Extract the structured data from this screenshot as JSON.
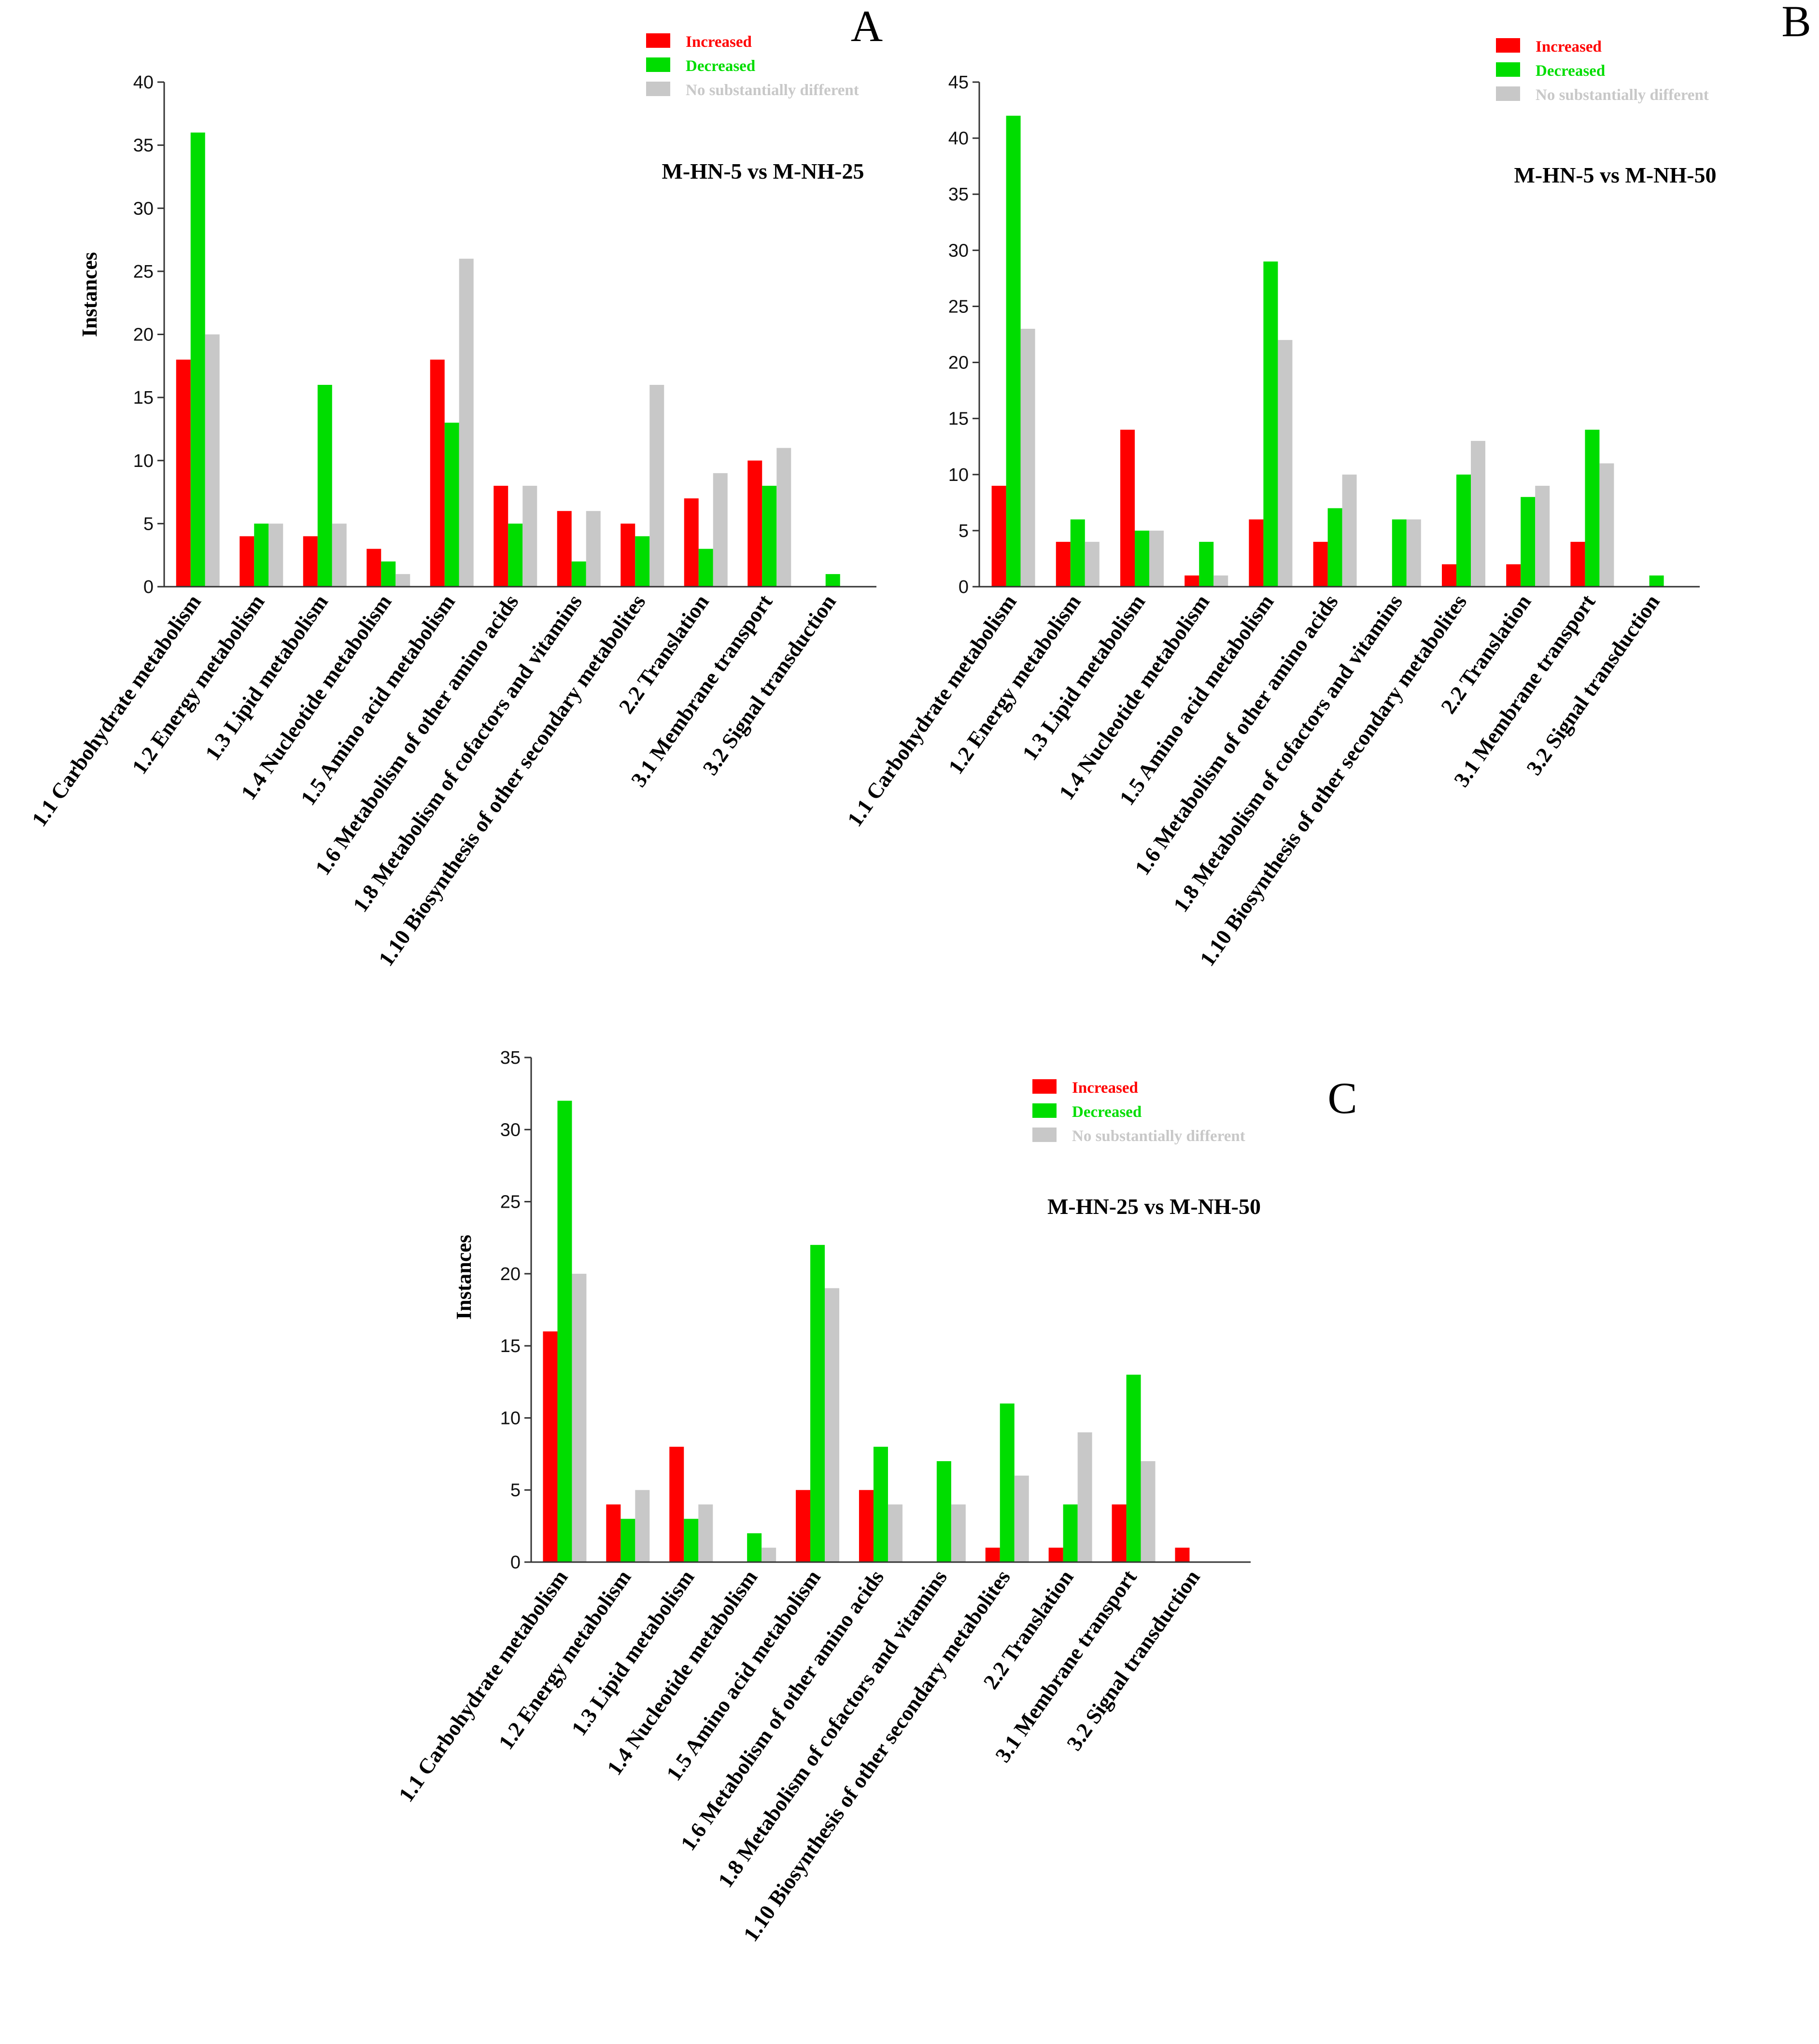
{
  "colors": {
    "increased": "#ff0000",
    "decreased": "#00dd00",
    "nodiff": "#c8c8c8"
  },
  "chart_data": [
    {
      "type": "bar",
      "panel": "A",
      "title": "M-HN-5 vs M-NH-25",
      "xlabel": "",
      "ylabel": "Instances",
      "ylim": [
        0,
        40
      ],
      "yticks": [
        0,
        5,
        10,
        15,
        20,
        25,
        30,
        35,
        40
      ],
      "legend_position": "top-right",
      "categories": [
        "1.1 Carbohydrate metabolism",
        "1.2 Energy metabolism",
        "1.3 Lipid metabolism",
        "1.4 Nucleotide metabolism",
        "1.5 Amino acid metabolism",
        "1.6 Metabolism of other amino acids",
        "1.8 Metabolism of cofactors and vitamins",
        "1.10 Biosynthesis of other secondary metabolites",
        "2.2 Translation",
        "3.1 Membrane transport",
        "3.2 Signal transduction"
      ],
      "series": [
        {
          "name": "Increased",
          "values": [
            18,
            4,
            4,
            3,
            18,
            8,
            6,
            5,
            7,
            10,
            0
          ]
        },
        {
          "name": "Decreased",
          "values": [
            36,
            5,
            16,
            2,
            13,
            5,
            2,
            4,
            3,
            8,
            1
          ]
        },
        {
          "name": "No substantially different",
          "values": [
            20,
            5,
            5,
            1,
            26,
            8,
            6,
            16,
            9,
            11,
            0
          ]
        }
      ]
    },
    {
      "type": "bar",
      "panel": "B",
      "title": "M-HN-5 vs M-NH-50",
      "xlabel": "",
      "ylabel": "",
      "ylim": [
        0,
        45
      ],
      "yticks": [
        0,
        5,
        10,
        15,
        20,
        25,
        30,
        35,
        40,
        45
      ],
      "legend_position": "top-right",
      "categories": [
        "1.1 Carbohydrate metabolism",
        "1.2 Energy metabolism",
        "1.3 Lipid metabolism",
        "1.4 Nucleotide metabolism",
        "1.5 Amino acid metabolism",
        "1.6 Metabolism of other amino acids",
        "1.8 Metabolism of cofactors and vitamins",
        "1.10 Biosynthesis of other secondary metabolites",
        "2.2 Translation",
        "3.1 Membrane transport",
        "3.2 Signal transduction"
      ],
      "series": [
        {
          "name": "Increased",
          "values": [
            9,
            4,
            14,
            1,
            6,
            4,
            0,
            2,
            2,
            4,
            0
          ]
        },
        {
          "name": "Decreased",
          "values": [
            42,
            6,
            5,
            4,
            29,
            7,
            6,
            10,
            8,
            14,
            1
          ]
        },
        {
          "name": "No substantially different",
          "values": [
            23,
            4,
            5,
            1,
            22,
            10,
            6,
            13,
            9,
            11,
            0
          ]
        }
      ]
    },
    {
      "type": "bar",
      "panel": "C",
      "title": "M-HN-25 vs M-NH-50",
      "xlabel": "",
      "ylabel": "Instances",
      "ylim": [
        0,
        35
      ],
      "yticks": [
        0,
        5,
        10,
        15,
        20,
        25,
        30,
        35
      ],
      "legend_position": "top-right",
      "categories": [
        "1.1 Carbohydrate metabolism",
        "1.2 Energy metabolism",
        "1.3 Lipid metabolism",
        "1.4 Nucleotide metabolism",
        "1.5 Amino acid metabolism",
        "1.6 Metabolism of other amino acids",
        "1.8 Metabolism of cofactors and vitamins",
        "1.10 Biosynthesis of other secondary metabolites",
        "2.2 Translation",
        "3.1 Membrane transport",
        "3.2 Signal transduction"
      ],
      "series": [
        {
          "name": "Increased",
          "values": [
            16,
            4,
            8,
            0,
            5,
            5,
            0,
            1,
            1,
            4,
            1
          ]
        },
        {
          "name": "Decreased",
          "values": [
            32,
            3,
            3,
            2,
            22,
            8,
            7,
            11,
            4,
            13,
            0
          ]
        },
        {
          "name": "No substantially different",
          "values": [
            20,
            5,
            4,
            1,
            19,
            4,
            4,
            6,
            9,
            7,
            0
          ]
        }
      ]
    }
  ]
}
